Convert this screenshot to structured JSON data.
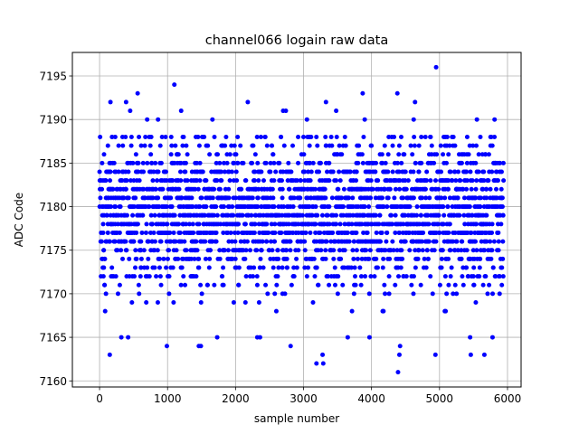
{
  "chart_data": {
    "type": "scatter",
    "title": "channel066 logain raw data",
    "xlabel": "sample number",
    "ylabel": "ADC Code",
    "xlim": [
      -400,
      6200
    ],
    "ylim": [
      7159.3,
      7197.7
    ],
    "x_ticks": [
      0,
      1000,
      2000,
      3000,
      4000,
      5000,
      6000
    ],
    "y_ticks": [
      7160,
      7165,
      7170,
      7175,
      7180,
      7185,
      7190,
      7195
    ],
    "x_tick_labels": [
      "0",
      "1000",
      "2000",
      "3000",
      "4000",
      "5000",
      "6000"
    ],
    "y_tick_labels": [
      "7160",
      "7165",
      "7170",
      "7175",
      "7180",
      "7185",
      "7190",
      "7195"
    ],
    "grid": true,
    "marker_color": "#0000ff",
    "n_samples": 5940,
    "dense_band": [
      7168,
      7188
    ],
    "series": [
      {
        "outliers": [
          [
            4950,
            7196
          ],
          [
            1100,
            7194
          ],
          [
            560,
            7193
          ],
          [
            3870,
            7193
          ],
          [
            4380,
            7193
          ],
          [
            160,
            7192
          ],
          [
            390,
            7192
          ],
          [
            2180,
            7192
          ],
          [
            4640,
            7192
          ],
          [
            3330,
            7192
          ],
          [
            450,
            7191
          ],
          [
            1200,
            7191
          ],
          [
            2700,
            7191
          ],
          [
            2740,
            7191
          ],
          [
            3480,
            7191
          ],
          [
            700,
            7190
          ],
          [
            860,
            7190
          ],
          [
            1660,
            7190
          ],
          [
            3050,
            7190
          ],
          [
            3900,
            7190
          ],
          [
            4620,
            7190
          ],
          [
            5550,
            7190
          ],
          [
            5810,
            7190
          ],
          [
            150,
            7163
          ],
          [
            990,
            7164
          ],
          [
            1460,
            7164
          ],
          [
            1490,
            7164
          ],
          [
            2810,
            7164
          ],
          [
            4420,
            7164
          ],
          [
            320,
            7165
          ],
          [
            420,
            7165
          ],
          [
            1730,
            7165
          ],
          [
            2320,
            7165
          ],
          [
            2360,
            7165
          ],
          [
            3650,
            7165
          ],
          [
            3970,
            7165
          ],
          [
            5450,
            7165
          ],
          [
            5780,
            7165
          ],
          [
            3190,
            7162
          ],
          [
            3290,
            7162
          ],
          [
            3280,
            7163
          ],
          [
            4940,
            7163
          ],
          [
            5460,
            7163
          ],
          [
            5660,
            7163
          ],
          [
            4390,
            7161
          ],
          [
            4410,
            7163
          ]
        ]
      }
    ]
  }
}
